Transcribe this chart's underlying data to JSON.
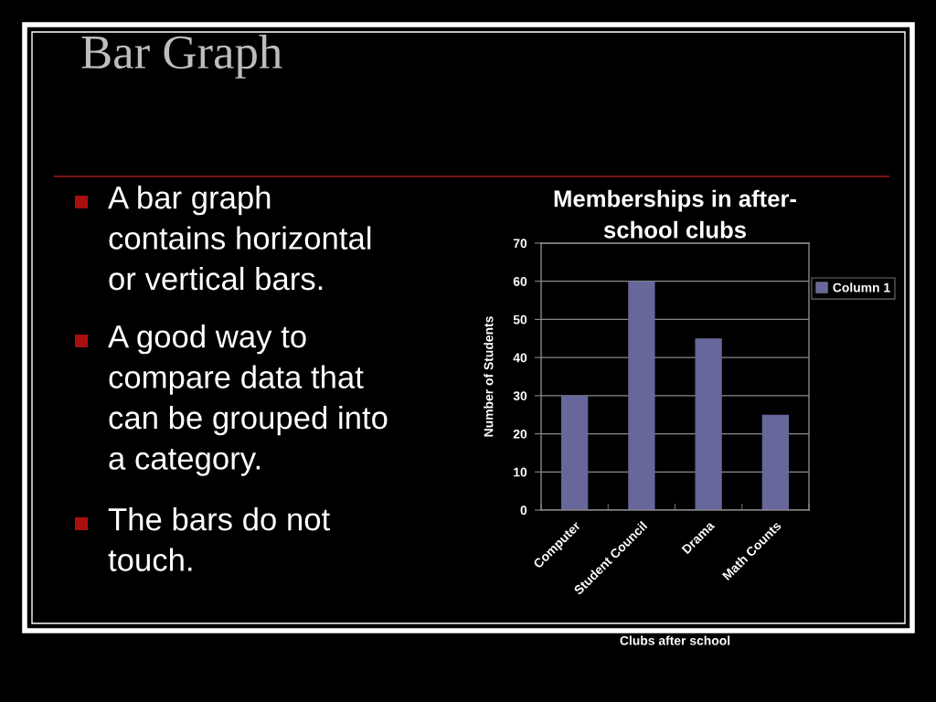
{
  "chart_data": {
    "type": "bar",
    "title": "Memberships in after-\nschool clubs",
    "xlabel": "Clubs after school",
    "ylabel": "Number of Students",
    "categories": [
      "Computer",
      "Student Council",
      "Drama",
      "Math Counts"
    ],
    "series": [
      {
        "name": "Column 1",
        "color": "#67679c",
        "values": [
          30,
          60,
          45,
          25
        ]
      }
    ],
    "ylim": [
      0,
      70
    ],
    "yticks": [
      0,
      10,
      20,
      30,
      40,
      50,
      60,
      70
    ],
    "grid": "y",
    "legend": "right",
    "annotations": [
      "Bar Graph",
      "A bar graph\ncontains horizontal\nor vertical bars.",
      "A good way to\ncompare data that\ncan be grouped into\na category.",
      "The bars do not\ntouch."
    ]
  }
}
